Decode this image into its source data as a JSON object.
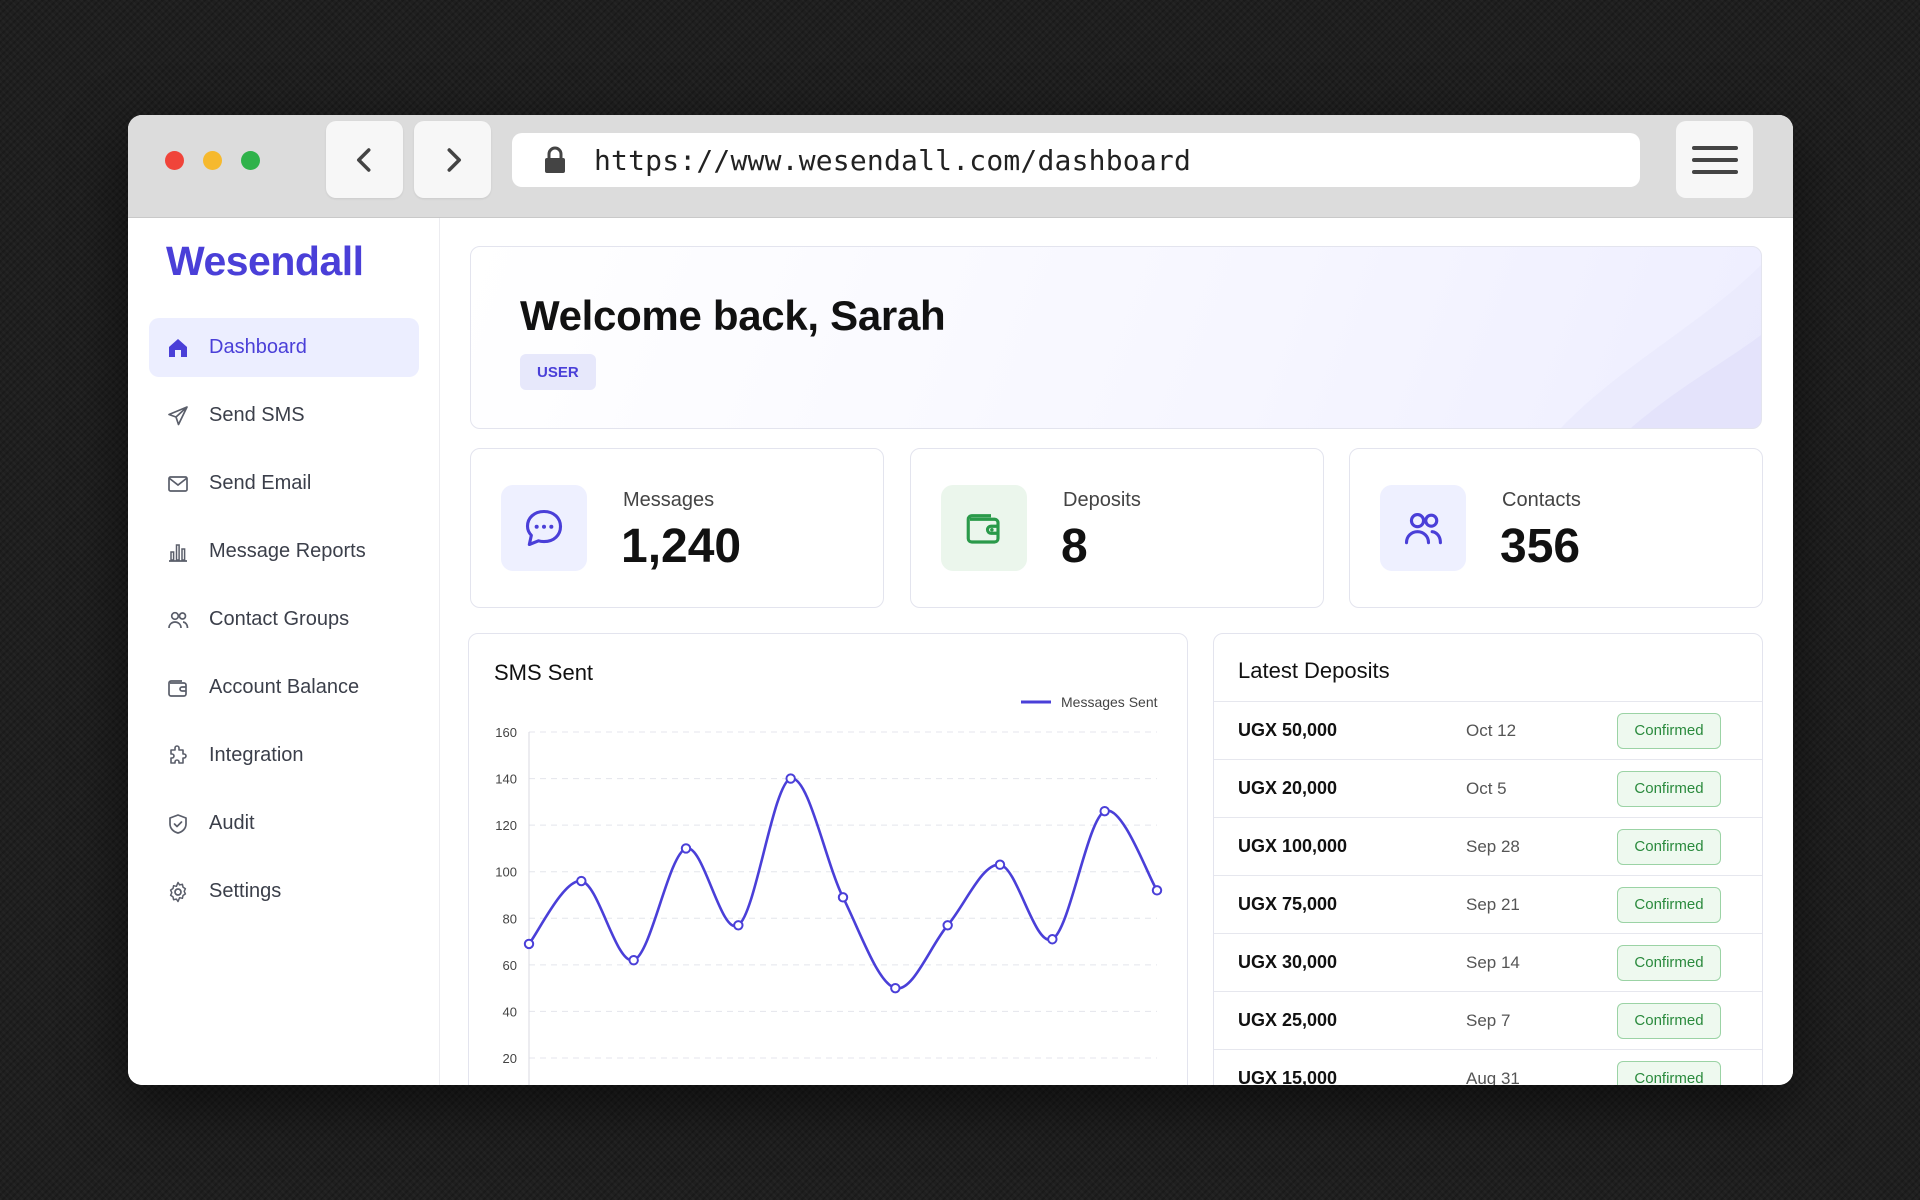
{
  "browser": {
    "url": "https://www.wesendall.com/dashboard"
  },
  "sidebar": {
    "brand": "Wesendall",
    "items": [
      {
        "label": "Dashboard",
        "icon": "home-icon",
        "active": true
      },
      {
        "label": "Send SMS",
        "icon": "send-icon",
        "active": false
      },
      {
        "label": "Send Email",
        "icon": "mail-icon",
        "active": false
      },
      {
        "label": "Message Reports",
        "icon": "bar-chart-icon",
        "active": false
      },
      {
        "label": "Contact Groups",
        "icon": "users-icon",
        "active": false
      },
      {
        "label": "Account Balance",
        "icon": "wallet-icon",
        "active": false
      },
      {
        "label": "Integration",
        "icon": "puzzle-icon",
        "active": false
      },
      {
        "label": "Audit",
        "icon": "shield-check-icon",
        "active": false
      },
      {
        "label": "Settings",
        "icon": "gear-icon",
        "active": false
      }
    ]
  },
  "welcome": {
    "title": "Welcome back, Sarah",
    "role": "USER"
  },
  "stats": [
    {
      "label": "Messages",
      "value": "1,240",
      "icon": "chat-bubble-icon",
      "accent": "#4a3fd8"
    },
    {
      "label": "Deposits",
      "value": "8",
      "icon": "wallet-icon",
      "accent": "#2a9a4a"
    },
    {
      "label": "Contacts",
      "value": "356",
      "icon": "users-icon",
      "accent": "#4a3fd8"
    }
  ],
  "chart_card": {
    "title": "SMS Sent"
  },
  "chart_data": {
    "type": "line",
    "legend": "top-right",
    "grid": true,
    "ylim": [
      20,
      160
    ],
    "yticks": [
      160,
      140,
      120,
      100,
      80,
      60,
      40,
      20
    ],
    "series": [
      {
        "name": "Messages Sent",
        "color": "#4a3fd8",
        "values": [
          69,
          96,
          62,
          110,
          77,
          140,
          89,
          50,
          77,
          103,
          71,
          126,
          92
        ]
      }
    ]
  },
  "deposits": {
    "title": "Latest Deposits",
    "rows": [
      {
        "amount": "UGX 50,000",
        "date": "Oct 12",
        "status": "Confirmed"
      },
      {
        "amount": "UGX 20,000",
        "date": "Oct 5",
        "status": "Confirmed"
      },
      {
        "amount": "UGX 100,000",
        "date": "Sep 28",
        "status": "Confirmed"
      },
      {
        "amount": "UGX 75,000",
        "date": "Sep 21",
        "status": "Confirmed"
      },
      {
        "amount": "UGX 30,000",
        "date": "Sep 14",
        "status": "Confirmed"
      },
      {
        "amount": "UGX 25,000",
        "date": "Sep 7",
        "status": "Confirmed"
      },
      {
        "amount": "UGX 15,000",
        "date": "Aug 31",
        "status": "Confirmed"
      }
    ]
  }
}
